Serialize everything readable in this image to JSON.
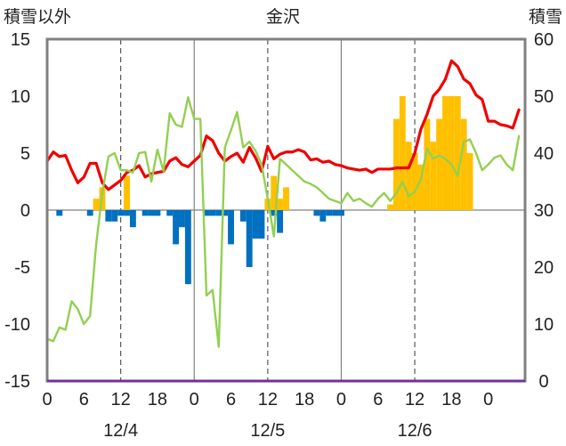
{
  "chart_data": {
    "type": "combo",
    "title": "金沢",
    "left_axis_label": "積雪以外",
    "right_axis_label": "積雪",
    "left_ylim": [
      -15,
      15
    ],
    "right_ylim": [
      0,
      60
    ],
    "left_ticks": [
      "15",
      "10",
      "5",
      "0",
      "-5",
      "-10",
      "-15"
    ],
    "right_ticks": [
      "60",
      "50",
      "40",
      "30",
      "20",
      "10",
      "0"
    ],
    "x_hours": [
      0,
      6,
      12,
      18,
      0,
      6,
      12,
      18,
      0,
      6,
      12,
      18,
      0
    ],
    "x_tick_labels": [
      "0",
      "6",
      "12",
      "18",
      "0",
      "6",
      "12",
      "18",
      "0",
      "6",
      "12",
      "18",
      "0"
    ],
    "day_labels": [
      "12/4",
      "12/5",
      "12/6"
    ],
    "grid": "dashed vertical at 12h, solid vertical at day boundaries",
    "colors": {
      "red": "#ee0000",
      "green": "#92d050",
      "blue": "#0070c0",
      "orange": "#ffc000",
      "baseline": "#7030a0",
      "frame": "#808080"
    },
    "series": [
      {
        "type": "bar",
        "axis": "left",
        "color": "#0070c0",
        "points": [
          [
            2,
            -0.5
          ],
          [
            7,
            -0.5
          ],
          [
            10,
            -1.0
          ],
          [
            11,
            -1.0
          ],
          [
            12,
            -0.5
          ],
          [
            13,
            -0.5
          ],
          [
            14,
            -1.5
          ],
          [
            16,
            -0.5
          ],
          [
            17,
            -0.5
          ],
          [
            18,
            -0.5
          ],
          [
            20,
            -0.5
          ],
          [
            21,
            -3.0
          ],
          [
            22,
            -1.5
          ],
          [
            23,
            -6.5
          ],
          [
            26,
            -0.5
          ],
          [
            27,
            -0.5
          ],
          [
            28,
            -0.5
          ],
          [
            29,
            -0.5
          ],
          [
            30,
            -3.0
          ],
          [
            32,
            -1.0
          ],
          [
            33,
            -5.0
          ],
          [
            34,
            -2.5
          ],
          [
            35,
            -2.5
          ],
          [
            37,
            -0.5
          ],
          [
            38,
            -2.0
          ],
          [
            44,
            -0.5
          ],
          [
            45,
            -1.0
          ],
          [
            46,
            -0.5
          ],
          [
            47,
            -0.5
          ],
          [
            48,
            -0.5
          ]
        ]
      },
      {
        "type": "bar",
        "axis": "left",
        "color": "#ffc000",
        "points": [
          [
            8,
            1.0
          ],
          [
            9,
            2.0
          ],
          [
            13,
            3.0
          ],
          [
            36,
            1.0
          ],
          [
            37,
            3.0
          ],
          [
            38,
            1.0
          ],
          [
            39,
            2.0
          ],
          [
            56,
            0.5
          ],
          [
            57,
            8.0
          ],
          [
            58,
            10.0
          ],
          [
            59,
            6.0
          ],
          [
            60,
            5.0
          ],
          [
            61,
            4.0
          ],
          [
            62,
            8.0
          ],
          [
            63,
            6.0
          ],
          [
            64,
            8.0
          ],
          [
            65,
            10.0
          ],
          [
            66,
            10.0
          ],
          [
            67,
            10.0
          ],
          [
            68,
            8.0
          ],
          [
            69,
            5.0
          ]
        ]
      },
      {
        "type": "line",
        "axis": "left",
        "color": "#ee0000",
        "points": [
          [
            0,
            4.3
          ],
          [
            1,
            5.1
          ],
          [
            2,
            4.7
          ],
          [
            3,
            4.8
          ],
          [
            4,
            3.5
          ],
          [
            5,
            2.4
          ],
          [
            6,
            2.9
          ],
          [
            7,
            4.1
          ],
          [
            8,
            4.1
          ],
          [
            9,
            2.4
          ],
          [
            10,
            1.8
          ],
          [
            11,
            2.2
          ],
          [
            12,
            2.6
          ],
          [
            13,
            3.3
          ],
          [
            14,
            3.5
          ],
          [
            15,
            3.9
          ],
          [
            16,
            2.9
          ],
          [
            17,
            3.2
          ],
          [
            18,
            3.3
          ],
          [
            19,
            3.4
          ],
          [
            20,
            4.3
          ],
          [
            21,
            4.6
          ],
          [
            22,
            4.0
          ],
          [
            23,
            3.8
          ],
          [
            24,
            4.3
          ],
          [
            25,
            4.8
          ],
          [
            26,
            6.5
          ],
          [
            27,
            6.1
          ],
          [
            28,
            5.0
          ],
          [
            29,
            4.3
          ],
          [
            30,
            4.7
          ],
          [
            31,
            5.0
          ],
          [
            32,
            4.2
          ],
          [
            33,
            5.5
          ],
          [
            34,
            4.6
          ],
          [
            35,
            3.4
          ],
          [
            36,
            5.6
          ],
          [
            37,
            4.5
          ],
          [
            38,
            4.9
          ],
          [
            39,
            5.1
          ],
          [
            40,
            5.1
          ],
          [
            41,
            5.3
          ],
          [
            42,
            5.1
          ],
          [
            43,
            4.4
          ],
          [
            44,
            4.5
          ],
          [
            45,
            4.2
          ],
          [
            46,
            4.3
          ],
          [
            47,
            4.0
          ],
          [
            48,
            3.9
          ],
          [
            49,
            3.7
          ],
          [
            50,
            3.6
          ],
          [
            51,
            3.5
          ],
          [
            52,
            3.6
          ],
          [
            53,
            3.3
          ],
          [
            54,
            3.6
          ],
          [
            55,
            3.6
          ],
          [
            56,
            3.6
          ],
          [
            57,
            3.7
          ],
          [
            58,
            3.7
          ],
          [
            59,
            3.7
          ],
          [
            60,
            5.0
          ],
          [
            61,
            7.1
          ],
          [
            62,
            8.4
          ],
          [
            63,
            10.0
          ],
          [
            64,
            10.6
          ],
          [
            65,
            11.5
          ],
          [
            66,
            13.1
          ],
          [
            67,
            12.6
          ],
          [
            68,
            11.5
          ],
          [
            69,
            11.1
          ],
          [
            70,
            10.1
          ],
          [
            71,
            9.7
          ],
          [
            72,
            7.8
          ],
          [
            73,
            7.8
          ],
          [
            74,
            7.5
          ],
          [
            75,
            7.4
          ],
          [
            76,
            7.2
          ],
          [
            77,
            8.8
          ]
        ]
      },
      {
        "type": "line",
        "axis": "left",
        "color": "#92d050",
        "points": [
          [
            0,
            -11.3
          ],
          [
            1,
            -11.5
          ],
          [
            2,
            -10.3
          ],
          [
            3,
            -10.5
          ],
          [
            4,
            -8.0
          ],
          [
            5,
            -8.7
          ],
          [
            6,
            -10.0
          ],
          [
            7,
            -9.3
          ],
          [
            8,
            -3.0
          ],
          [
            9,
            1.5
          ],
          [
            10,
            4.7
          ],
          [
            11,
            5.0
          ],
          [
            12,
            3.5
          ],
          [
            13,
            3.5
          ],
          [
            14,
            3.3
          ],
          [
            15,
            5.0
          ],
          [
            16,
            5.1
          ],
          [
            17,
            2.5
          ],
          [
            18,
            5.3
          ],
          [
            19,
            3.4
          ],
          [
            20,
            8.5
          ],
          [
            21,
            7.5
          ],
          [
            22,
            7.3
          ],
          [
            23,
            9.9
          ],
          [
            24,
            8.0
          ],
          [
            25,
            8.0
          ],
          [
            26,
            -7.5
          ],
          [
            27,
            -7.0
          ],
          [
            28,
            -12.0
          ],
          [
            29,
            5.5
          ],
          [
            30,
            7.0
          ],
          [
            31,
            8.6
          ],
          [
            32,
            5.5
          ],
          [
            33,
            6.0
          ],
          [
            34,
            5.2
          ],
          [
            35,
            4.0
          ],
          [
            36,
            1.0
          ],
          [
            37,
            -2.3
          ],
          [
            38,
            4.5
          ],
          [
            39,
            4.0
          ],
          [
            40,
            3.5
          ],
          [
            41,
            3.0
          ],
          [
            42,
            2.5
          ],
          [
            43,
            2.3
          ],
          [
            44,
            2.0
          ],
          [
            45,
            1.5
          ],
          [
            46,
            1.0
          ],
          [
            47,
            0.8
          ],
          [
            48,
            0.6
          ],
          [
            49,
            1.5
          ],
          [
            50,
            0.8
          ],
          [
            51,
            1.0
          ],
          [
            52,
            0.6
          ],
          [
            53,
            0.3
          ],
          [
            54,
            1.0
          ],
          [
            55,
            1.5
          ],
          [
            56,
            0.8
          ],
          [
            57,
            1.5
          ],
          [
            58,
            2.5
          ],
          [
            59,
            1.2
          ],
          [
            60,
            1.6
          ],
          [
            61,
            2.7
          ],
          [
            62,
            5.4
          ],
          [
            63,
            4.5
          ],
          [
            64,
            4.8
          ],
          [
            65,
            4.5
          ],
          [
            66,
            4.0
          ],
          [
            67,
            3.0
          ],
          [
            68,
            6.0
          ],
          [
            69,
            6.2
          ],
          [
            70,
            5.0
          ],
          [
            71,
            3.5
          ],
          [
            72,
            4.0
          ],
          [
            73,
            4.6
          ],
          [
            74,
            4.8
          ],
          [
            75,
            4.0
          ],
          [
            76,
            3.5
          ],
          [
            77,
            6.5
          ]
        ]
      },
      {
        "type": "line",
        "axis": "left",
        "color": "#7030a0",
        "points": [
          [
            0,
            -15.0
          ],
          [
            78,
            -15.0
          ]
        ]
      }
    ]
  }
}
